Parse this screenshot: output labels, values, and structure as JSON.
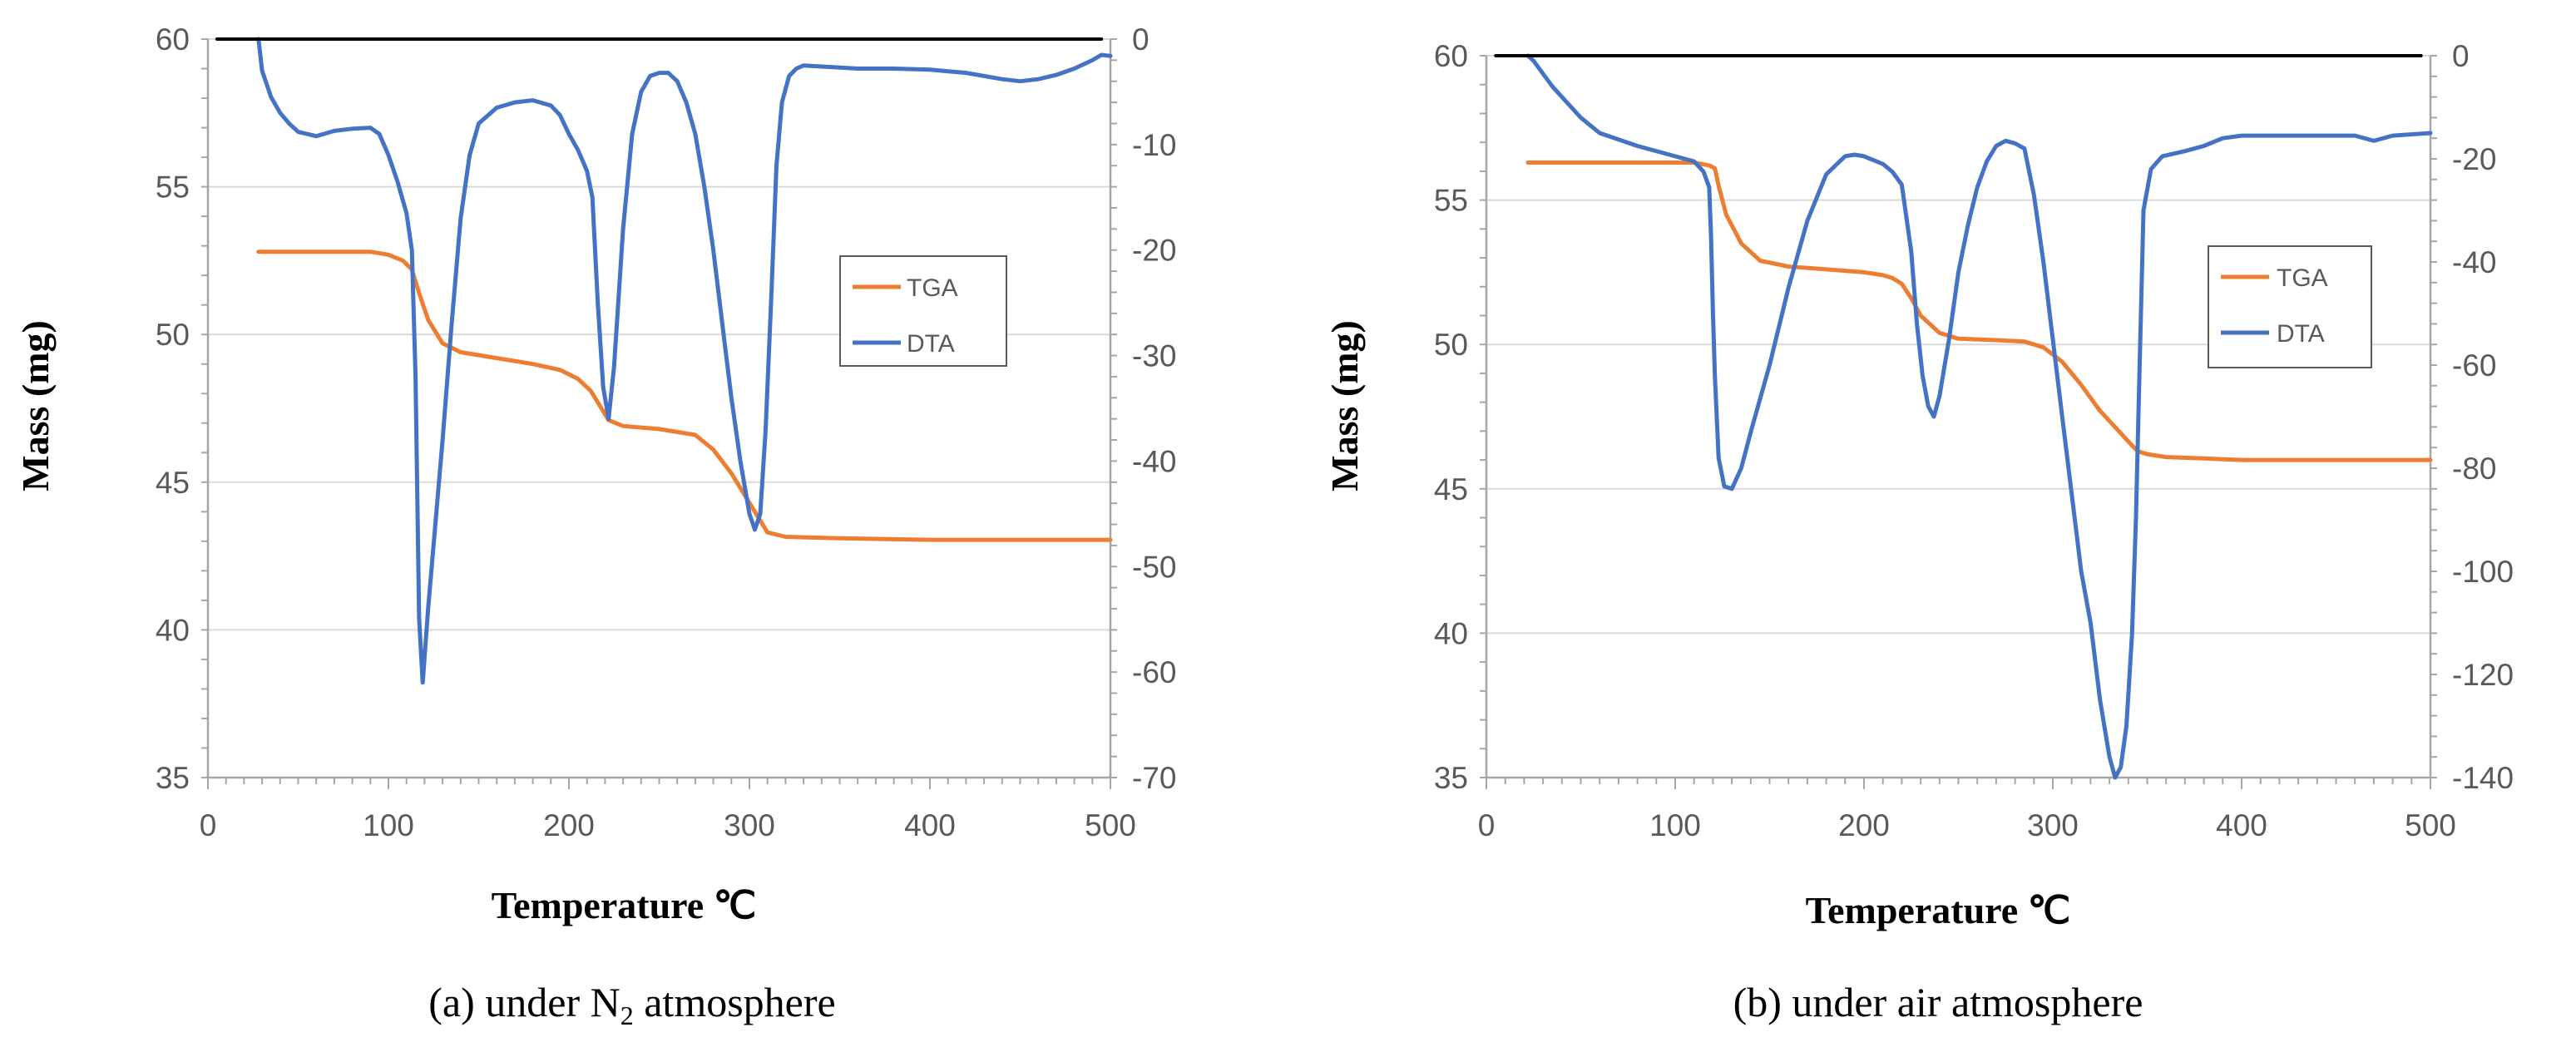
{
  "chart_data": [
    {
      "type": "line",
      "caption": "(a) under N",
      "caption_sub": "2",
      "caption_tail": " atmosphere",
      "xlabel": "Temperature ℃",
      "ylabel": "Mass (mg)",
      "xlim": [
        0,
        500
      ],
      "ylim_left": [
        35,
        60
      ],
      "ylim_right": [
        -70,
        0
      ],
      "xticks": [
        0,
        100,
        200,
        300,
        400,
        500
      ],
      "yticks_left": [
        35,
        40,
        45,
        50,
        55,
        60
      ],
      "yticks_right": [
        -70,
        -60,
        -50,
        -40,
        -30,
        -20,
        -10,
        0
      ],
      "legend": [
        "TGA",
        "DTA"
      ],
      "colors": {
        "TGA": "#ED7D31",
        "DTA": "#4472C4",
        "baseline": "#000000"
      },
      "series": [
        {
          "name": "TGA",
          "axis": "left",
          "x": [
            28,
            60,
            90,
            100,
            108,
            113,
            117,
            122,
            130,
            140,
            160,
            180,
            195,
            205,
            212,
            218,
            222,
            230,
            250,
            270,
            280,
            290,
            300,
            305,
            310,
            320,
            350,
            400,
            450,
            500
          ],
          "y": [
            52.8,
            52.8,
            52.8,
            52.7,
            52.5,
            52.2,
            51.4,
            50.5,
            49.7,
            49.4,
            49.2,
            49.0,
            48.8,
            48.5,
            48.1,
            47.5,
            47.1,
            46.9,
            46.8,
            46.6,
            46.1,
            45.3,
            44.3,
            43.8,
            43.3,
            43.15,
            43.1,
            43.05,
            43.05,
            43.05
          ]
        },
        {
          "name": "DTA",
          "axis": "right",
          "x": [
            28,
            30,
            35,
            40,
            45,
            50,
            60,
            70,
            80,
            90,
            95,
            100,
            105,
            110,
            113,
            115,
            117,
            119,
            122,
            126,
            130,
            135,
            140,
            145,
            150,
            160,
            170,
            180,
            190,
            195,
            200,
            205,
            210,
            213,
            216,
            219,
            222,
            225,
            230,
            235,
            240,
            245,
            250,
            255,
            260,
            265,
            270,
            275,
            280,
            285,
            290,
            295,
            300,
            303,
            306,
            309,
            312,
            315,
            318,
            322,
            326,
            330,
            340,
            360,
            380,
            400,
            420,
            440,
            450,
            460,
            470,
            480,
            490,
            495,
            500
          ],
          "y": [
            0,
            -3,
            -5.5,
            -7,
            -8,
            -8.8,
            -9.2,
            -8.7,
            -8.5,
            -8.4,
            -9,
            -11,
            -13.5,
            -16.5,
            -20,
            -32,
            -55,
            -61,
            -54,
            -46,
            -38,
            -27,
            -17,
            -11,
            -8,
            -6.5,
            -6,
            -5.8,
            -6.3,
            -7.2,
            -9,
            -10.5,
            -12.5,
            -15,
            -25,
            -33,
            -36,
            -31,
            -18,
            -9,
            -5,
            -3.5,
            -3.2,
            -3.2,
            -4,
            -6,
            -9,
            -14,
            -20,
            -27,
            -34,
            -40,
            -45,
            -46.5,
            -45,
            -37,
            -25,
            -12,
            -6,
            -3.5,
            -2.8,
            -2.5,
            -2.6,
            -2.8,
            -2.8,
            -2.9,
            -3.2,
            -3.8,
            -4,
            -3.8,
            -3.4,
            -2.8,
            -2,
            -1.5,
            -1.6
          ]
        },
        {
          "name": "baseline",
          "axis": "right",
          "x": [
            5,
            495
          ],
          "y": [
            0,
            0
          ]
        }
      ]
    },
    {
      "type": "line",
      "caption": "(b) under air atmosphere",
      "xlabel": "Temperature ℃",
      "ylabel": "Mass (mg)",
      "xlim": [
        0,
        500
      ],
      "ylim_left": [
        35,
        60
      ],
      "ylim_right": [
        -140,
        0
      ],
      "xticks": [
        0,
        100,
        200,
        300,
        400,
        500
      ],
      "yticks_left": [
        35,
        40,
        45,
        50,
        55,
        60
      ],
      "yticks_right": [
        -140,
        -120,
        -100,
        -80,
        -60,
        -40,
        -20,
        0
      ],
      "legend": [
        "TGA",
        "DTA"
      ],
      "colors": {
        "TGA": "#ED7D31",
        "DTA": "#4472C4",
        "baseline": "#000000"
      },
      "series": [
        {
          "name": "TGA",
          "axis": "left",
          "x": [
            22,
            60,
            100,
            110,
            118,
            121,
            123,
            127,
            135,
            145,
            160,
            180,
            200,
            210,
            215,
            220,
            225,
            230,
            240,
            250,
            270,
            285,
            295,
            305,
            315,
            325,
            335,
            342,
            345,
            350,
            360,
            380,
            400,
            450,
            500
          ],
          "y": [
            56.3,
            56.3,
            56.3,
            56.3,
            56.2,
            56.1,
            55.5,
            54.5,
            53.5,
            52.9,
            52.7,
            52.6,
            52.5,
            52.4,
            52.3,
            52.1,
            51.6,
            51.0,
            50.4,
            50.2,
            50.15,
            50.1,
            49.9,
            49.4,
            48.6,
            47.7,
            47.0,
            46.5,
            46.3,
            46.2,
            46.1,
            46.05,
            46.0,
            46.0,
            46.0
          ]
        },
        {
          "name": "DTA",
          "axis": "right",
          "x": [
            22,
            25,
            30,
            35,
            40,
            50,
            60,
            80,
            100,
            110,
            115,
            118,
            119,
            120,
            121,
            123,
            126,
            130,
            135,
            140,
            150,
            160,
            170,
            180,
            190,
            195,
            200,
            210,
            215,
            220,
            225,
            228,
            231,
            234,
            237,
            240,
            245,
            250,
            255,
            260,
            265,
            270,
            275,
            280,
            285,
            290,
            295,
            300,
            305,
            310,
            315,
            320,
            325,
            330,
            333,
            336,
            339,
            342,
            344,
            346,
            348,
            352,
            358,
            370,
            380,
            390,
            400,
            420,
            440,
            460,
            470,
            480,
            500
          ],
          "y": [
            0,
            -1,
            -3.5,
            -6,
            -8,
            -12,
            -15,
            -17.5,
            -19.5,
            -20.5,
            -22.5,
            -25.5,
            -35,
            -50,
            -62,
            -78,
            -83.5,
            -84,
            -80,
            -73,
            -60,
            -45,
            -32,
            -23,
            -19.5,
            -19.2,
            -19.5,
            -21,
            -22.5,
            -25,
            -38,
            -52,
            -62,
            -68,
            -70,
            -66,
            -55,
            -42,
            -33,
            -25.5,
            -20.5,
            -17.5,
            -16.5,
            -17,
            -18,
            -27,
            -40,
            -55,
            -70,
            -85,
            -100,
            -110,
            -125,
            -136,
            -140,
            -138,
            -130,
            -112,
            -90,
            -60,
            -30,
            -22,
            -19.5,
            -18.5,
            -17.5,
            -16,
            -15.5,
            -15.5,
            -15.5,
            -15.5,
            -16.5,
            -15.5,
            -15
          ]
        },
        {
          "name": "baseline",
          "axis": "right",
          "x": [
            5,
            495
          ],
          "y": [
            0,
            0
          ]
        }
      ]
    }
  ]
}
